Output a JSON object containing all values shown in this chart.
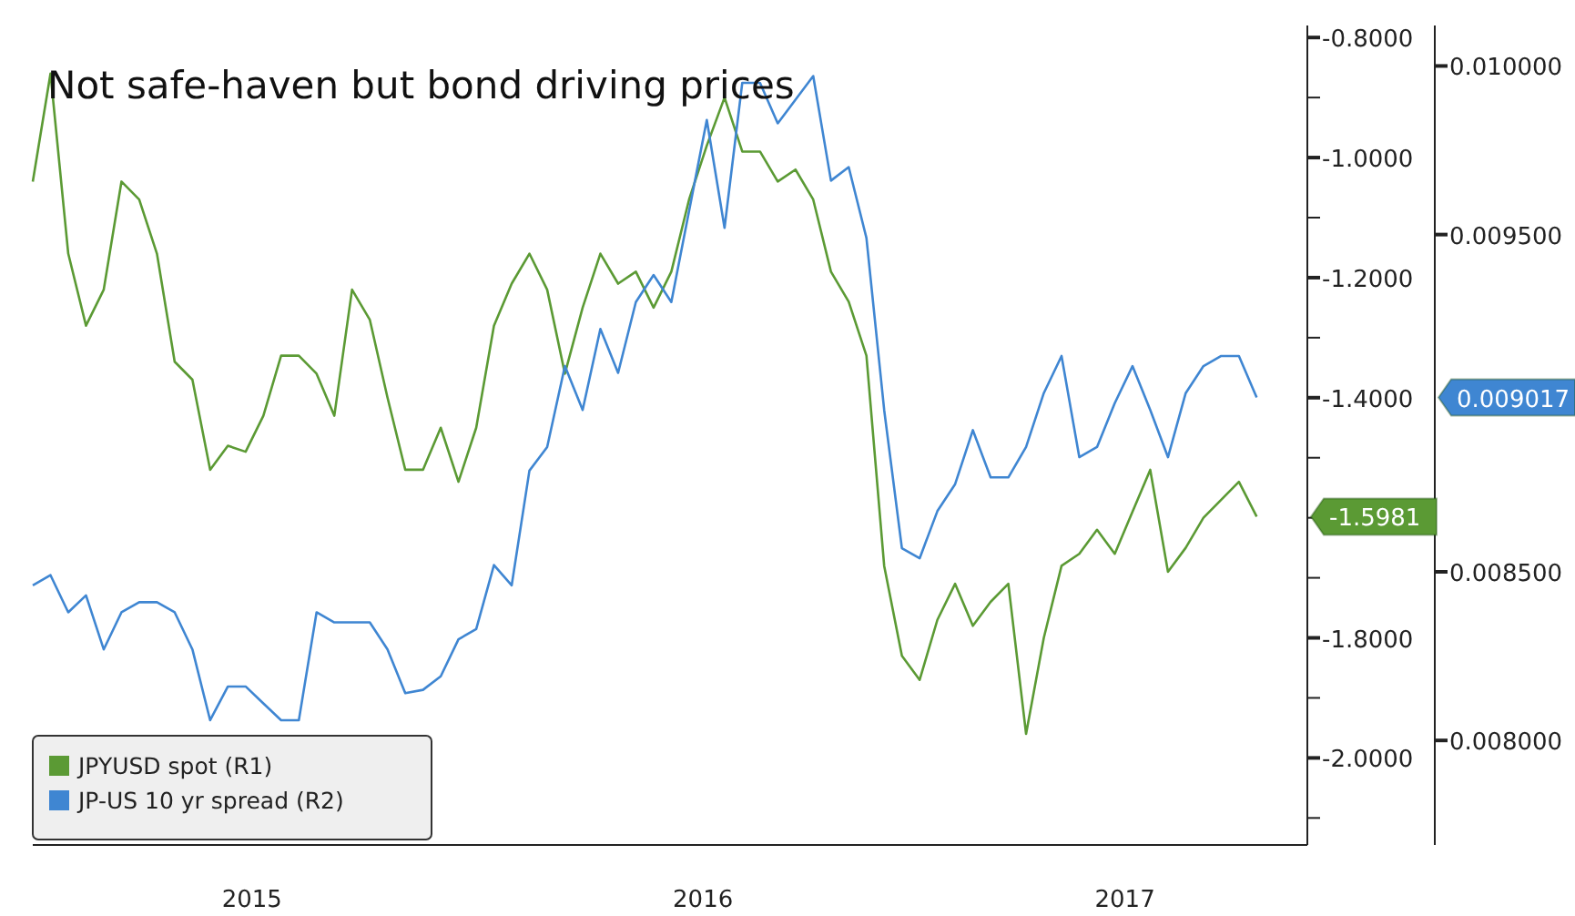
{
  "chart_data": {
    "type": "line",
    "title": "Not safe-haven but bond driving prices",
    "x": [
      "2015-01-19",
      "2015-02-02",
      "2015-02-16",
      "2015-03-02",
      "2015-03-16",
      "2015-03-30",
      "2015-04-13",
      "2015-04-27",
      "2015-05-11",
      "2015-05-25",
      "2015-06-08",
      "2015-06-22",
      "2015-07-06",
      "2015-07-20",
      "2015-08-03",
      "2015-08-17",
      "2015-08-31",
      "2015-09-14",
      "2015-09-28",
      "2015-10-12",
      "2015-10-26",
      "2015-11-09",
      "2015-11-23",
      "2015-12-07",
      "2015-12-21",
      "2016-01-04",
      "2016-01-18",
      "2016-02-01",
      "2016-02-15",
      "2016-02-29",
      "2016-03-14",
      "2016-03-28",
      "2016-04-11",
      "2016-04-25",
      "2016-05-09",
      "2016-05-23",
      "2016-06-06",
      "2016-06-20",
      "2016-07-04",
      "2016-07-18",
      "2016-08-01",
      "2016-08-15",
      "2016-08-29",
      "2016-09-12",
      "2016-09-26",
      "2016-10-10",
      "2016-10-24",
      "2016-11-07",
      "2016-11-21",
      "2016-12-05",
      "2016-12-19",
      "2017-01-02",
      "2017-01-16",
      "2017-01-30",
      "2017-02-13",
      "2017-02-27",
      "2017-03-13",
      "2017-03-27",
      "2017-04-10",
      "2017-04-24",
      "2017-05-08",
      "2017-05-22",
      "2017-06-05",
      "2017-06-19",
      "2017-07-03",
      "2017-07-17",
      "2017-07-31",
      "2017-08-14",
      "2017-08-28",
      "2017-09-11"
    ],
    "series": [
      {
        "name": "JPYUSD spot (R1)",
        "color": "#5b9a34",
        "values": [
          -1.04,
          -0.86,
          -1.16,
          -1.28,
          -1.22,
          -1.04,
          -1.07,
          -1.16,
          -1.34,
          -1.37,
          -1.52,
          -1.48,
          -1.49,
          -1.43,
          -1.33,
          -1.33,
          -1.36,
          -1.43,
          -1.22,
          -1.27,
          -1.4,
          -1.52,
          -1.52,
          -1.45,
          -1.54,
          -1.45,
          -1.28,
          -1.21,
          -1.16,
          -1.22,
          -1.36,
          -1.25,
          -1.16,
          -1.21,
          -1.19,
          -1.25,
          -1.19,
          -1.07,
          -0.98,
          -0.9,
          -0.99,
          -0.99,
          -1.04,
          -1.02,
          -1.07,
          -1.19,
          -1.24,
          -1.33,
          -1.68,
          -1.83,
          -1.87,
          -1.77,
          -1.71,
          -1.78,
          -1.74,
          -1.71,
          -1.96,
          -1.8,
          -1.68,
          -1.66,
          -1.62,
          -1.66,
          -1.59,
          -1.52,
          -1.69,
          -1.65,
          -1.6,
          -1.57,
          -1.54,
          -1.5981
        ]
      },
      {
        "name": "JP-US 10 yr spread (R2)",
        "color": "#3f86d2",
        "axis": "y2",
        "values": [
          0.00846,
          0.00849,
          0.00838,
          0.00843,
          0.00827,
          0.00838,
          0.00841,
          0.00841,
          0.00838,
          0.00827,
          0.00806,
          0.00816,
          0.00816,
          0.00811,
          0.00806,
          0.00806,
          0.00838,
          0.00835,
          0.00835,
          0.00835,
          0.00827,
          0.00814,
          0.00815,
          0.00819,
          0.0083,
          0.00833,
          0.00852,
          0.00846,
          0.0088,
          0.00887,
          0.00911,
          0.00898,
          0.00922,
          0.00909,
          0.0093,
          0.00938,
          0.0093,
          0.00957,
          0.00984,
          0.00952,
          0.00995,
          0.00995,
          0.00983,
          0.0099,
          0.00997,
          0.00966,
          0.0097,
          0.00949,
          0.00898,
          0.00857,
          0.00854,
          0.00868,
          0.00876,
          0.00892,
          0.00878,
          0.00878,
          0.00887,
          0.00903,
          0.00914,
          0.00884,
          0.00887,
          0.009,
          0.00911,
          0.00898,
          0.00884,
          0.00903,
          0.00911,
          0.00914,
          0.00914,
          0.009017
        ]
      }
    ],
    "xlim": [
      "2015-01-19",
      "2017-10-21"
    ],
    "xticks": [
      {
        "value": "2015-07-11",
        "label": "2015"
      },
      {
        "value": "2016-07-01",
        "label": "2016"
      },
      {
        "value": "2017-05-30",
        "label": "2017"
      }
    ],
    "ylim": [
      -2.145,
      -0.78
    ],
    "yticks": [
      {
        "value": -0.8,
        "label": "-0.8000"
      },
      {
        "value": -0.9,
        "label": null
      },
      {
        "value": -1.0,
        "label": "-1.0000"
      },
      {
        "value": -1.1,
        "label": null
      },
      {
        "value": -1.2,
        "label": "-1.2000"
      },
      {
        "value": -1.3,
        "label": null
      },
      {
        "value": -1.4,
        "label": "-1.4000"
      },
      {
        "value": -1.5,
        "label": null
      },
      {
        "value": -1.6,
        "label": null
      },
      {
        "value": -1.7,
        "label": null
      },
      {
        "value": -1.8,
        "label": "-1.8000"
      },
      {
        "value": -1.9,
        "label": null
      },
      {
        "value": -2.0,
        "label": "-2.0000"
      },
      {
        "value": -2.1,
        "label": null
      }
    ],
    "y2lim": [
      0.00769,
      0.01012
    ],
    "y2ticks": [
      {
        "value": 0.01,
        "label": "0.010000"
      },
      {
        "value": 0.0095,
        "label": "0.009500"
      },
      {
        "value": 0.0085,
        "label": "0.008500"
      },
      {
        "value": 0.008,
        "label": "0.008000"
      }
    ],
    "annotations": [
      "-1.5981",
      "0.009017"
    ],
    "legend": "bottom left"
  }
}
